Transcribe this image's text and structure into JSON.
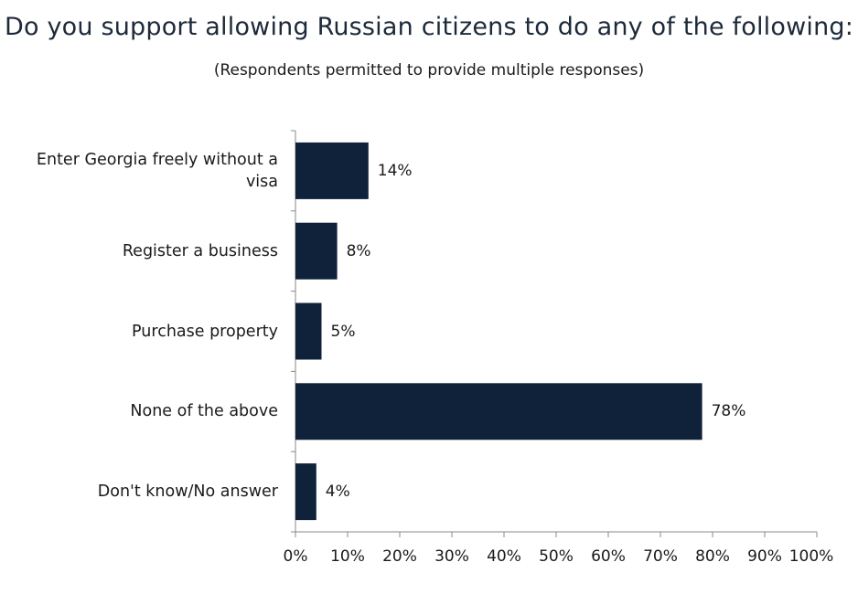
{
  "header": {
    "title": "Do you support allowing Russian citizens to do any of the following:",
    "subtitle": "(Respondents permitted to provide multiple responses)"
  },
  "chart_data": {
    "type": "bar",
    "orientation": "horizontal",
    "title": "Do you support allowing Russian citizens to do any of the following:",
    "subtitle": "(Respondents permitted to provide multiple responses)",
    "categories": [
      "Enter Georgia freely without a visa",
      "Register a business",
      "Purchase property",
      "None of the above",
      "Don't know/No answer"
    ],
    "values": [
      14,
      8,
      5,
      78,
      4
    ],
    "value_labels": [
      "14%",
      "8%",
      "5%",
      "78%",
      "4%"
    ],
    "xlim": [
      0,
      100
    ],
    "x_ticks": [
      "0%",
      "10%",
      "20%",
      "30%",
      "40%",
      "50%",
      "60%",
      "70%",
      "80%",
      "90%",
      "100%"
    ],
    "grid": false,
    "bar_color": "#10223a"
  }
}
